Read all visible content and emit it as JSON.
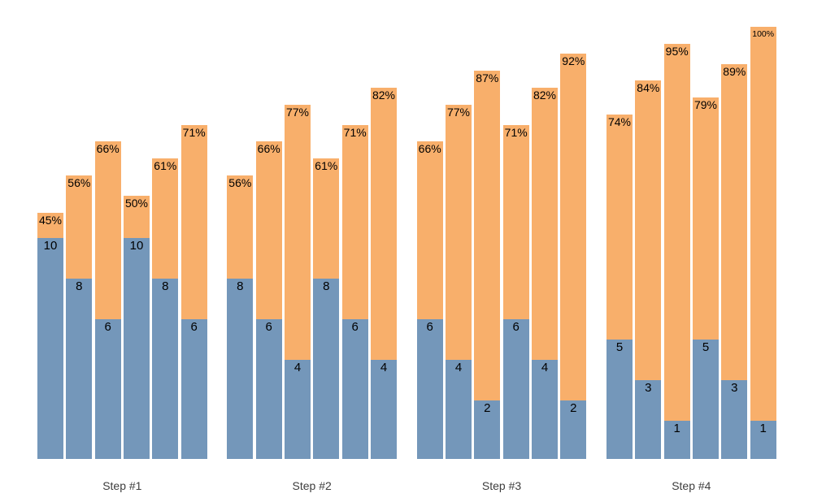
{
  "chart_data": {
    "type": "bar",
    "stacked": true,
    "orientation": "vertical",
    "title": "",
    "xlabel": "",
    "ylabel": "",
    "legend": "none",
    "axes_visible": false,
    "grid": false,
    "background": "#ffffff",
    "colors": {
      "blue_segment": "#7497ba",
      "orange_segment": "#f8af6b",
      "bar_label_text": "#000000",
      "group_label_text": "#3d3d3d"
    },
    "groups": [
      {
        "label": "Step #1",
        "bars": [
          {
            "value": 10,
            "value_label": "10",
            "percent": 45,
            "percent_label": "45%"
          },
          {
            "value": 8,
            "value_label": "8",
            "percent": 56,
            "percent_label": "56%"
          },
          {
            "value": 6,
            "value_label": "6",
            "percent": 66,
            "percent_label": "66%"
          },
          {
            "value": 10,
            "value_label": "10",
            "percent": 50,
            "percent_label": "50%"
          },
          {
            "value": 8,
            "value_label": "8",
            "percent": 61,
            "percent_label": "61%"
          },
          {
            "value": 6,
            "value_label": "6",
            "percent": 71,
            "percent_label": "71%"
          }
        ]
      },
      {
        "label": "Step #2",
        "bars": [
          {
            "value": 8,
            "value_label": "8",
            "percent": 56,
            "percent_label": "56%"
          },
          {
            "value": 6,
            "value_label": "6",
            "percent": 66,
            "percent_label": "66%"
          },
          {
            "value": 4,
            "value_label": "4",
            "percent": 77,
            "percent_label": "77%"
          },
          {
            "value": 8,
            "value_label": "8",
            "percent": 61,
            "percent_label": "61%"
          },
          {
            "value": 6,
            "value_label": "6",
            "percent": 71,
            "percent_label": "71%"
          },
          {
            "value": 4,
            "value_label": "4",
            "percent": 82,
            "percent_label": "82%"
          }
        ]
      },
      {
        "label": "Step #3",
        "bars": [
          {
            "value": 6,
            "value_label": "6",
            "percent": 66,
            "percent_label": "66%"
          },
          {
            "value": 4,
            "value_label": "4",
            "percent": 77,
            "percent_label": "77%"
          },
          {
            "value": 2,
            "value_label": "2",
            "percent": 87,
            "percent_label": "87%"
          },
          {
            "value": 6,
            "value_label": "6",
            "percent": 71,
            "percent_label": "71%"
          },
          {
            "value": 4,
            "value_label": "4",
            "percent": 82,
            "percent_label": "82%"
          },
          {
            "value": 2,
            "value_label": "2",
            "percent": 92,
            "percent_label": "92%"
          }
        ]
      },
      {
        "label": "Step #4",
        "bars": [
          {
            "value": 5,
            "value_label": "5",
            "percent": 74,
            "percent_label": "74%"
          },
          {
            "value": 3,
            "value_label": "3",
            "percent": 84,
            "percent_label": "84%"
          },
          {
            "value": 1,
            "value_label": "1",
            "percent": 95,
            "percent_label": "95%"
          },
          {
            "value": 5,
            "value_label": "5",
            "percent": 79,
            "percent_label": "79%"
          },
          {
            "value": 3,
            "value_label": "3",
            "percent": 89,
            "percent_label": "89%"
          },
          {
            "value": 1,
            "value_label": "1",
            "percent": 100,
            "percent_label": "100%"
          }
        ]
      }
    ]
  }
}
